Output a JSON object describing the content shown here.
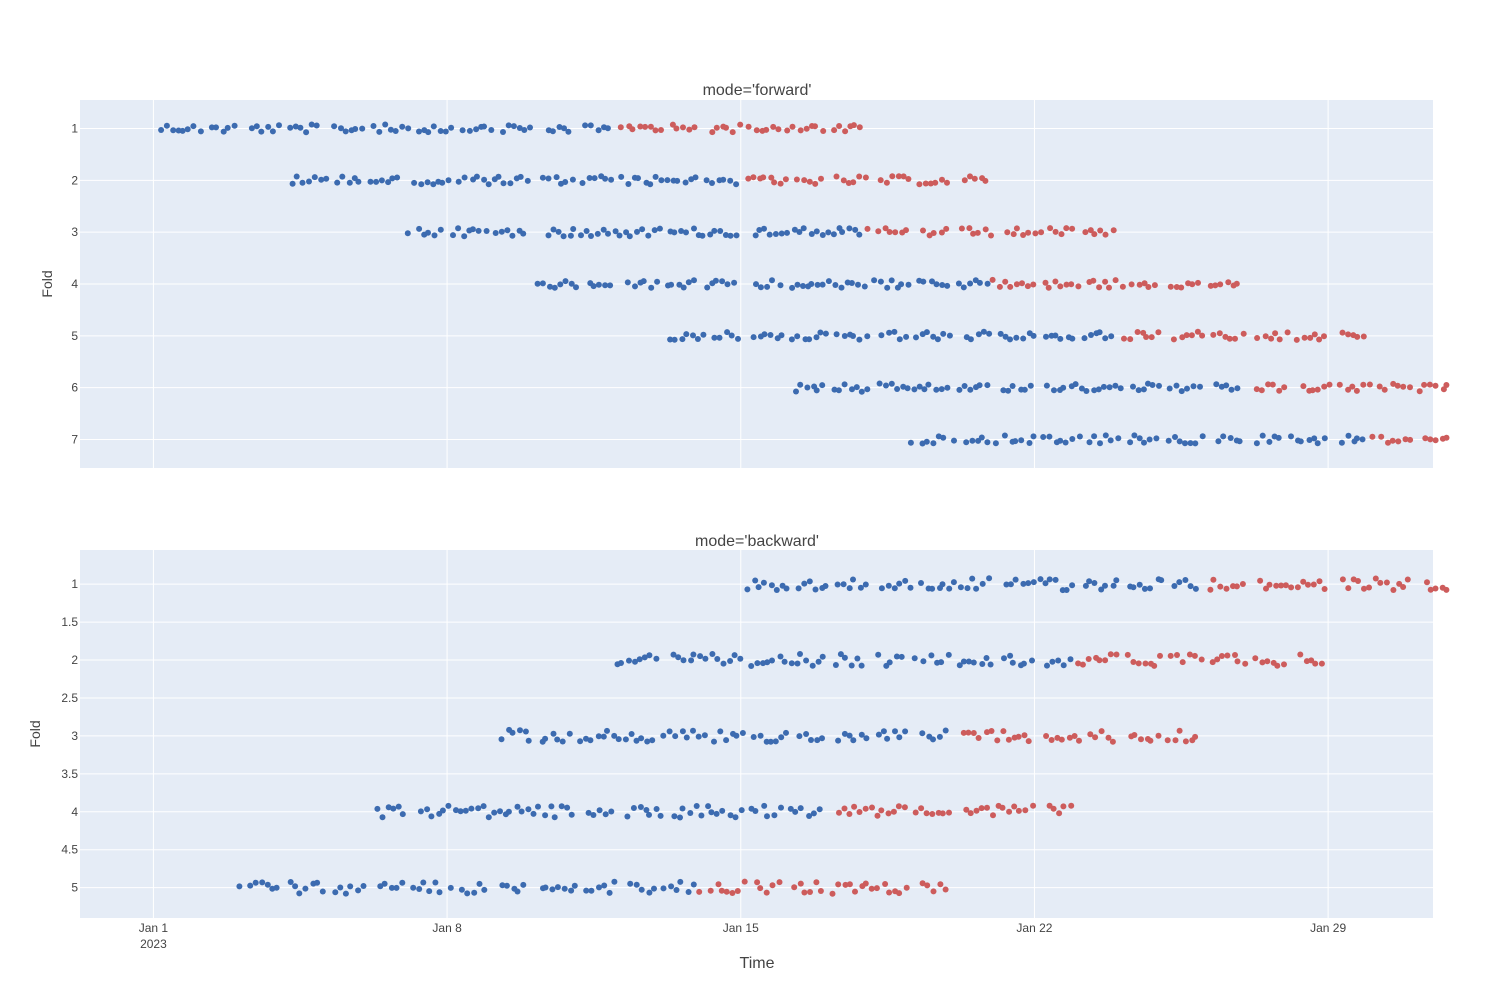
{
  "chart_data": {
    "type": "scatter",
    "xlabel": "Time",
    "x_ticks": [
      {
        "date": "2023-01-01",
        "label": "Jan 1",
        "sublabel": "2023"
      },
      {
        "date": "2023-01-08",
        "label": "Jan 8",
        "sublabel": ""
      },
      {
        "date": "2023-01-15",
        "label": "Jan 15",
        "sublabel": ""
      },
      {
        "date": "2023-01-22",
        "label": "Jan 22",
        "sublabel": ""
      },
      {
        "date": "2023-01-29",
        "label": "Jan 29",
        "sublabel": ""
      }
    ],
    "xlim": [
      "2022-12-30T06:00",
      "2023-01-31T12:00"
    ],
    "grid": true,
    "colors": {
      "train": "#3c6bb0",
      "test": "#cd5c5c",
      "plot_bg": "#e5ecf6",
      "grid": "#ffffff"
    },
    "panels": [
      {
        "title": "mode='forward'",
        "ylabel": "Fold",
        "ylim": [
          7.55,
          0.45
        ],
        "y_ticks": [
          {
            "value": 1,
            "label": "1"
          },
          {
            "value": 2,
            "label": "2"
          },
          {
            "value": 3,
            "label": "3"
          },
          {
            "value": 4,
            "label": "4"
          },
          {
            "value": 5,
            "label": "5"
          },
          {
            "value": 6,
            "label": "6"
          },
          {
            "value": 7,
            "label": "7"
          }
        ],
        "folds": [
          {
            "fold": 1,
            "train": [
              "2023-01-01",
              "2023-01-11"
            ],
            "test": [
              "2023-01-12",
              "2023-01-17"
            ]
          },
          {
            "fold": 2,
            "train": [
              "2023-01-04",
              "2023-01-14"
            ],
            "test": [
              "2023-01-15",
              "2023-01-20"
            ]
          },
          {
            "fold": 3,
            "train": [
              "2023-01-07",
              "2023-01-17"
            ],
            "test": [
              "2023-01-18",
              "2023-01-23"
            ]
          },
          {
            "fold": 4,
            "train": [
              "2023-01-10",
              "2023-01-20"
            ],
            "test": [
              "2023-01-21",
              "2023-01-26"
            ]
          },
          {
            "fold": 5,
            "train": [
              "2023-01-13",
              "2023-01-23"
            ],
            "test": [
              "2023-01-24",
              "2023-01-29"
            ]
          },
          {
            "fold": 6,
            "train": [
              "2023-01-16",
              "2023-01-26"
            ],
            "test": [
              "2023-01-27",
              "2023-01-31"
            ]
          },
          {
            "fold": 7,
            "train": [
              "2023-01-19",
              "2023-01-29"
            ],
            "test": [
              "2023-01-30",
              "2023-01-31"
            ]
          }
        ]
      },
      {
        "title": "mode='backward'",
        "ylabel": "Fold",
        "ylim": [
          5.4,
          0.55
        ],
        "y_ticks": [
          {
            "value": 1,
            "label": "1"
          },
          {
            "value": 1.5,
            "label": "1.5"
          },
          {
            "value": 2,
            "label": "2"
          },
          {
            "value": 2.5,
            "label": "2.5"
          },
          {
            "value": 3,
            "label": "3"
          },
          {
            "value": 3.5,
            "label": "3.5"
          },
          {
            "value": 4,
            "label": "4"
          },
          {
            "value": 4.5,
            "label": "4.5"
          },
          {
            "value": 5,
            "label": "5"
          }
        ],
        "folds": [
          {
            "fold": 1,
            "train": [
              "2023-01-15",
              "2023-01-25"
            ],
            "test": [
              "2023-01-26",
              "2023-01-31"
            ]
          },
          {
            "fold": 2,
            "train": [
              "2023-01-12",
              "2023-01-22"
            ],
            "test": [
              "2023-01-23",
              "2023-01-28"
            ]
          },
          {
            "fold": 3,
            "train": [
              "2023-01-09",
              "2023-01-19"
            ],
            "test": [
              "2023-01-20",
              "2023-01-25"
            ]
          },
          {
            "fold": 4,
            "train": [
              "2023-01-06",
              "2023-01-16"
            ],
            "test": [
              "2023-01-17",
              "2023-01-22"
            ]
          },
          {
            "fold": 5,
            "train": [
              "2023-01-03",
              "2023-01-13"
            ],
            "test": [
              "2023-01-14",
              "2023-01-19"
            ]
          }
        ]
      }
    ]
  }
}
